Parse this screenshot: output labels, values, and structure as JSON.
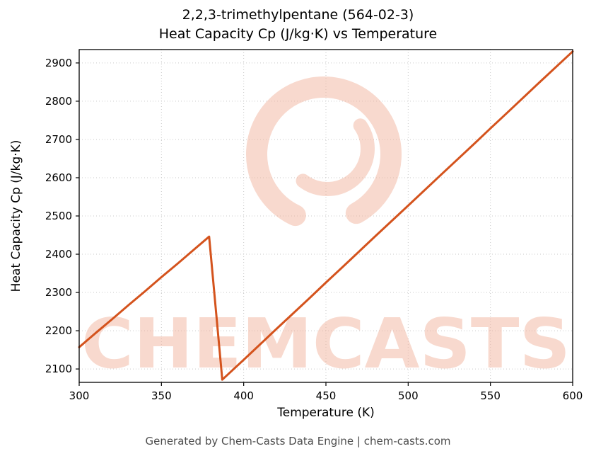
{
  "title": {
    "line1": "2,2,3-trimethylpentane (564-02-3)",
    "line2": "Heat Capacity Cp (J/kg·K) vs Temperature"
  },
  "footer": {
    "text": "Generated by Chem-Casts Data Engine | chem-casts.com"
  },
  "watermark": {
    "text": "CHEMCASTS",
    "logo": "chemcasts-swirl-logo",
    "color": "#f0b39c",
    "opacity": 0.5
  },
  "colors": {
    "line": "#d4531d",
    "grid": "#c9c9c9",
    "axis": "#000000",
    "background": "#ffffff",
    "footer_text": "#4d4d4d"
  },
  "chart_data": {
    "type": "line",
    "title": "2,2,3-trimethylpentane (564-02-3) — Heat Capacity Cp (J/kg·K) vs Temperature",
    "xlabel": "Temperature (K)",
    "ylabel": "Heat Capacity Cp (J/kg·K)",
    "xlim": [
      300,
      600
    ],
    "ylim": [
      2065,
      2935
    ],
    "x_ticks": [
      300,
      350,
      400,
      450,
      500,
      550,
      600
    ],
    "y_ticks": [
      2100,
      2200,
      2300,
      2400,
      2500,
      2600,
      2700,
      2800,
      2900
    ],
    "grid": true,
    "legend": "none",
    "series": [
      {
        "name": "Heat Capacity Cp",
        "x": [
          300,
          310,
          320,
          330,
          340,
          350,
          360,
          370,
          379,
          387,
          400,
          420,
          440,
          450,
          460,
          480,
          500,
          520,
          540,
          550,
          560,
          580,
          600
        ],
        "y": [
          2157,
          2194,
          2230,
          2267,
          2303,
          2340,
          2376,
          2413,
          2446,
          2072,
          2124,
          2205,
          2285,
          2326,
          2366,
          2447,
          2527,
          2608,
          2688,
          2729,
          2769,
          2850,
          2930
        ]
      }
    ]
  }
}
